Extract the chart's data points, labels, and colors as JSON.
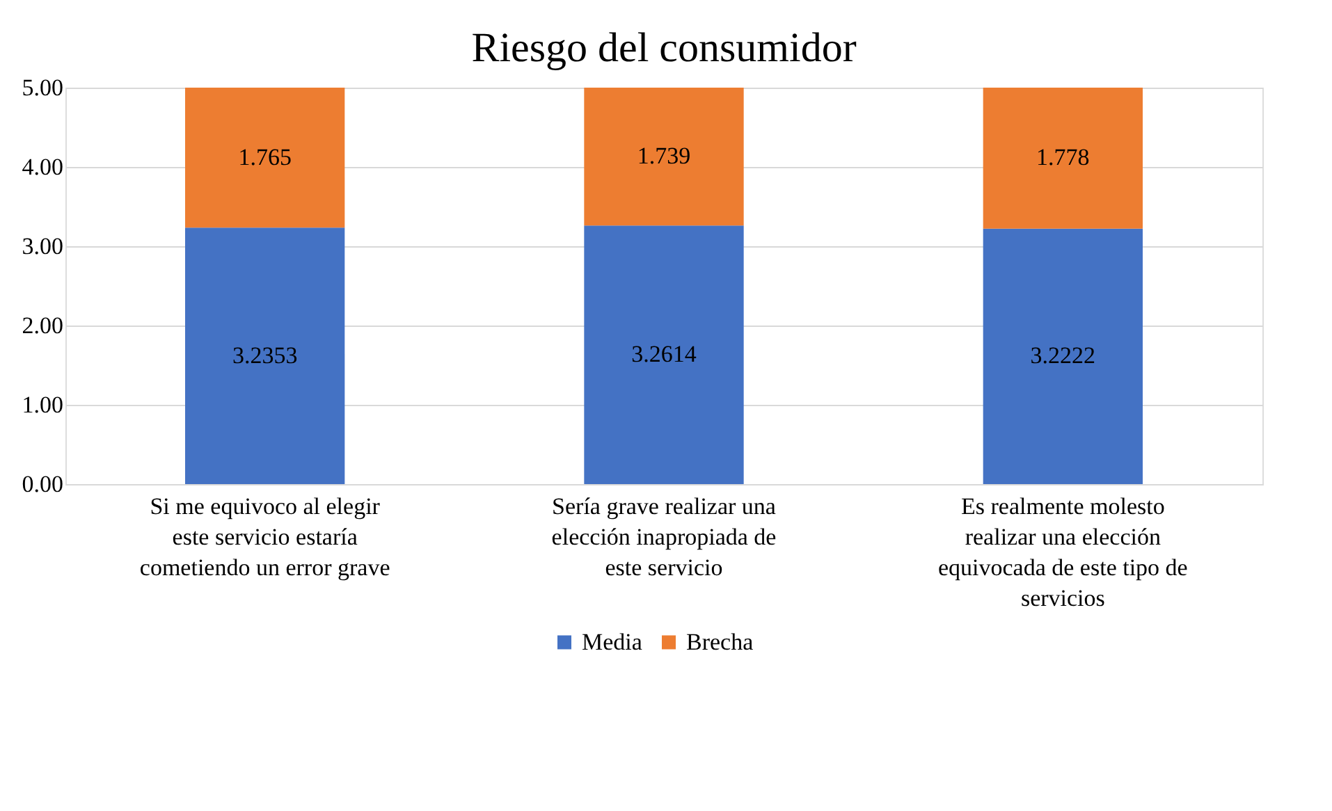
{
  "chart_data": {
    "type": "bar",
    "title": "Riesgo del consumidor",
    "stacked": true,
    "data_labels": true,
    "grid": "y",
    "legend": "bottom",
    "categories": [
      "Si me equivoco al elegir este servicio estaría cometiendo un error grave",
      "Sería grave realizar una elección inapropiada de este servicio",
      "Es realmente molesto realizar una elección equivocada de este tipo de servicios"
    ],
    "series": [
      {
        "name": "Media",
        "color": "#4472c4",
        "values": [
          3.2353,
          3.2614,
          3.2222
        ]
      },
      {
        "name": "Brecha",
        "color": "#ed7d31",
        "values": [
          1.765,
          1.739,
          1.778
        ]
      }
    ],
    "ylim": [
      0,
      5
    ],
    "yticks": [
      {
        "value": 0,
        "label": "0.00"
      },
      {
        "value": 1,
        "label": "1.00"
      },
      {
        "value": 2,
        "label": "2.00"
      },
      {
        "value": 3,
        "label": "3.00"
      },
      {
        "value": 4,
        "label": "4.00"
      },
      {
        "value": 5,
        "label": "5.00"
      }
    ]
  }
}
